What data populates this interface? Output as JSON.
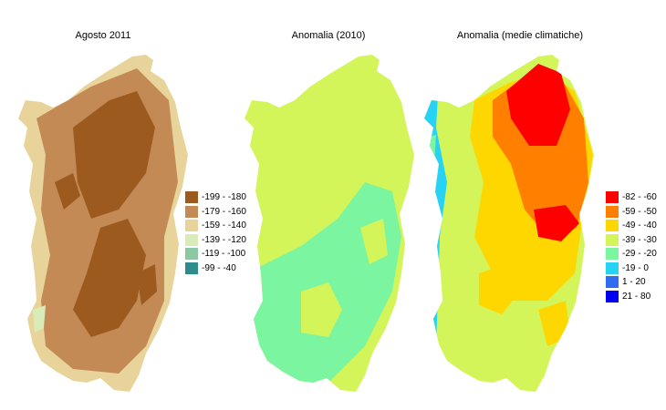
{
  "panels": [
    {
      "title": "Agosto 2011",
      "legend": [
        {
          "label": "-199 - -180",
          "color": "#9c5a1e"
        },
        {
          "label": "-179 - -160",
          "color": "#c38a55"
        },
        {
          "label": "-159 - -140",
          "color": "#e8d49a"
        },
        {
          "label": "-139 - -120",
          "color": "#d9ebb7"
        },
        {
          "label": "-119 - -100",
          "color": "#8ec7a3"
        },
        {
          "label": "-99 - -40",
          "color": "#2f8c8c"
        }
      ]
    },
    {
      "title": "Anomalia (2010)",
      "legend": []
    },
    {
      "title": "Anomalia (medie climatiche)",
      "legend": [
        {
          "label": "-82 - -60",
          "color": "#ff0000"
        },
        {
          "label": "-59 - -50",
          "color": "#ff8000"
        },
        {
          "label": "-49 - -40",
          "color": "#ffd700"
        },
        {
          "label": "-39 - -30",
          "color": "#d4f55a"
        },
        {
          "label": "-29 - -20",
          "color": "#7cf5a0"
        },
        {
          "label": "-19 - 0",
          "color": "#27d3f5"
        },
        {
          "label": "1 - 20",
          "color": "#2f6cf0"
        },
        {
          "label": "21 - 80",
          "color": "#0000f0"
        }
      ]
    }
  ]
}
